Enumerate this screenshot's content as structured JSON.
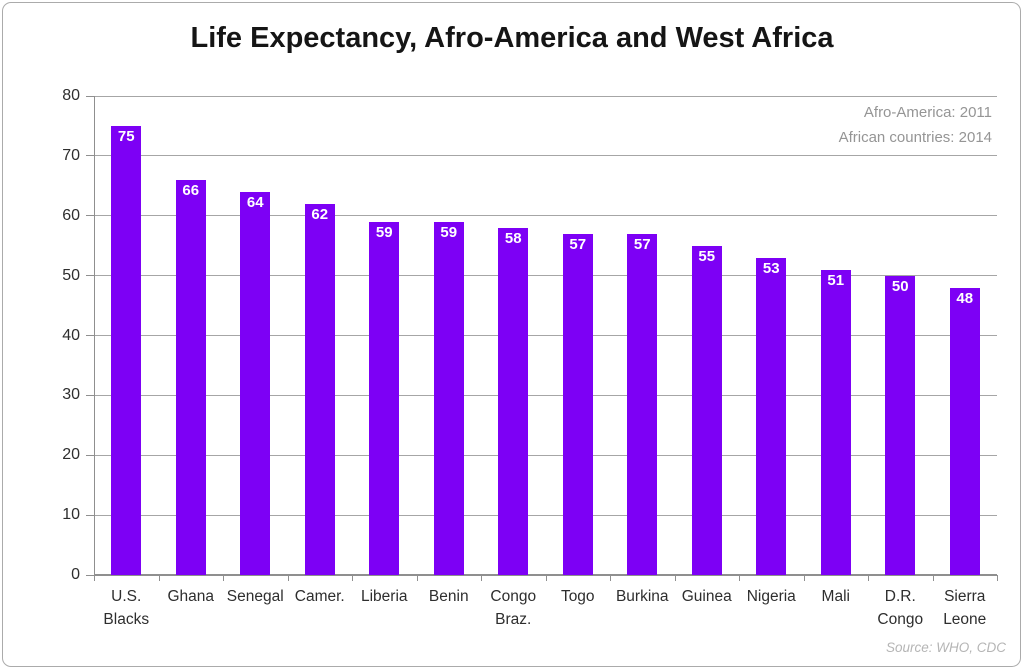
{
  "chart_data": {
    "type": "bar",
    "title": "Life Expectancy, Afro-America and West Africa",
    "categories": [
      "U.S.\nBlacks",
      "Ghana",
      "Senegal",
      "Camer.",
      "Liberia",
      "Benin",
      "Congo\nBraz.",
      "Togo",
      "Burkina",
      "Guinea",
      "Nigeria",
      "Mali",
      "D.R.\nCongo",
      "Sierra\nLeone"
    ],
    "values": [
      75,
      66,
      64,
      62,
      59,
      59,
      58,
      57,
      57,
      55,
      53,
      51,
      50,
      48
    ],
    "xlabel": "",
    "ylabel": "",
    "ylim": [
      0,
      80
    ],
    "ytick_step": 10,
    "grid": true,
    "legend_position": "none",
    "bar_color": "#7d00f5",
    "value_label_color": "#ffffff",
    "annotations": [
      "Afro-America: 2011",
      "African countries: 2014"
    ],
    "source": "Source: WHO, CDC"
  }
}
